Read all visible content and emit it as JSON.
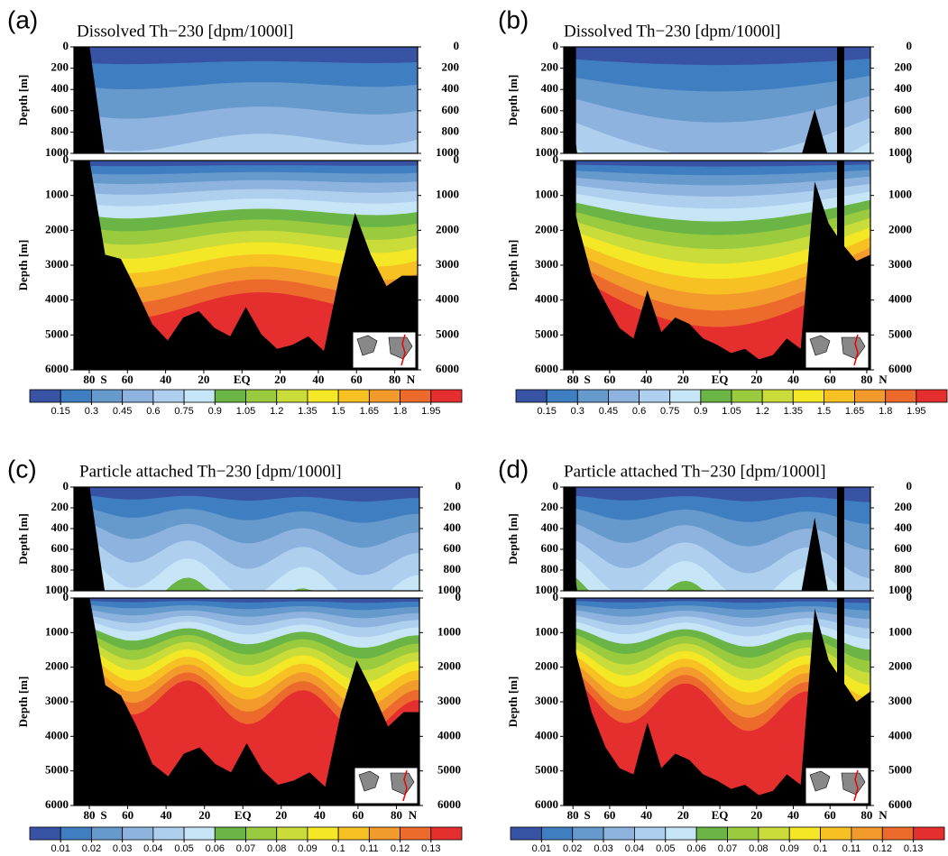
{
  "chart_data": [
    {
      "type": "contour",
      "panel_label": "(a)",
      "title": "Dissolved Th−230 [dpm/1000l]",
      "ylabel": "Depth [m]",
      "xlim": [
        -88,
        92
      ],
      "xticks": [
        {
          "value": -80,
          "label": "80"
        },
        {
          "value": -60,
          "label": "60"
        },
        {
          "value": -40,
          "label": "40"
        },
        {
          "value": -20,
          "label": "20"
        },
        {
          "value": 0,
          "label": "EQ"
        },
        {
          "value": 20,
          "label": "20"
        },
        {
          "value": 40,
          "label": "40"
        },
        {
          "value": 60,
          "label": "60"
        },
        {
          "value": 80,
          "label": "80"
        }
      ],
      "hemisphere_labels": [
        "S",
        "N"
      ],
      "upper": {
        "ylim": [
          1000,
          0
        ],
        "yticks": [
          0,
          200,
          400,
          600,
          800,
          1000
        ]
      },
      "lower": {
        "ylim": [
          6000,
          0
        ],
        "yticks": [
          0,
          1000,
          2000,
          3000,
          4000,
          5000,
          6000
        ]
      },
      "colorbar": {
        "levels": [
          0.15,
          0.3,
          0.45,
          0.6,
          0.75,
          0.9,
          1.05,
          1.2,
          1.35,
          1.5,
          1.65,
          1.8,
          1.95
        ],
        "colors": [
          "#3953a4",
          "#3f7fc1",
          "#6699cc",
          "#8db3de",
          "#aed0ee",
          "#c6e6f7",
          "#6ab545",
          "#9acb3f",
          "#cadc3a",
          "#f4e726",
          "#f7c123",
          "#f39a2c",
          "#ed6a2d",
          "#e52f2f"
        ]
      }
    },
    {
      "type": "contour",
      "panel_label": "(b)",
      "title": "Dissolved Th−230 [dpm/1000l]",
      "ylabel": "Depth [m]",
      "xlim": [
        -85,
        82
      ],
      "xticks": [
        {
          "value": -80,
          "label": "80"
        },
        {
          "value": -60,
          "label": "60"
        },
        {
          "value": -40,
          "label": "40"
        },
        {
          "value": -20,
          "label": "20"
        },
        {
          "value": 0,
          "label": "EQ"
        },
        {
          "value": 20,
          "label": "20"
        },
        {
          "value": 40,
          "label": "40"
        },
        {
          "value": 60,
          "label": "60"
        },
        {
          "value": 80,
          "label": "80"
        }
      ],
      "hemisphere_labels": [
        "S",
        "N"
      ],
      "upper": {
        "ylim": [
          1000,
          0
        ],
        "yticks": [
          0,
          200,
          400,
          600,
          800,
          1000
        ]
      },
      "lower": {
        "ylim": [
          6000,
          0
        ],
        "yticks": [
          0,
          1000,
          2000,
          3000,
          4000,
          5000,
          6000
        ]
      },
      "colorbar": {
        "levels": [
          0.15,
          0.3,
          0.45,
          0.6,
          0.75,
          0.9,
          1.05,
          1.2,
          1.35,
          1.5,
          1.65,
          1.8,
          1.95
        ],
        "colors": [
          "#3953a4",
          "#3f7fc1",
          "#6699cc",
          "#8db3de",
          "#aed0ee",
          "#c6e6f7",
          "#6ab545",
          "#9acb3f",
          "#cadc3a",
          "#f4e726",
          "#f7c123",
          "#f39a2c",
          "#ed6a2d",
          "#e52f2f"
        ]
      }
    },
    {
      "type": "contour",
      "panel_label": "(c)",
      "title": "Particle attached Th−230 [dpm/1000l]",
      "ylabel": "Depth [m]",
      "xlim": [
        -88,
        92
      ],
      "xticks": [
        {
          "value": -80,
          "label": "80"
        },
        {
          "value": -60,
          "label": "60"
        },
        {
          "value": -40,
          "label": "40"
        },
        {
          "value": -20,
          "label": "20"
        },
        {
          "value": 0,
          "label": "EQ"
        },
        {
          "value": 20,
          "label": "20"
        },
        {
          "value": 40,
          "label": "40"
        },
        {
          "value": 60,
          "label": "60"
        },
        {
          "value": 80,
          "label": "80"
        }
      ],
      "hemisphere_labels": [
        "S",
        "N"
      ],
      "upper": {
        "ylim": [
          1000,
          0
        ],
        "yticks": [
          0,
          200,
          400,
          600,
          800,
          1000
        ]
      },
      "lower": {
        "ylim": [
          6000,
          0
        ],
        "yticks": [
          0,
          1000,
          2000,
          3000,
          4000,
          5000,
          6000
        ]
      },
      "colorbar": {
        "levels": [
          0.01,
          0.02,
          0.03,
          0.04,
          0.05,
          0.06,
          0.07,
          0.08,
          0.09,
          0.1,
          0.11,
          0.12,
          0.13
        ],
        "colors": [
          "#3953a4",
          "#3f7fc1",
          "#6699cc",
          "#8db3de",
          "#aed0ee",
          "#c6e6f7",
          "#6ab545",
          "#9acb3f",
          "#cadc3a",
          "#f4e726",
          "#f7c123",
          "#f39a2c",
          "#ed6a2d",
          "#e52f2f"
        ]
      }
    },
    {
      "type": "contour",
      "panel_label": "(d)",
      "title": "Particle attached Th−230 [dpm/1000l]",
      "ylabel": "Depth [m]",
      "xlim": [
        -85,
        82
      ],
      "xticks": [
        {
          "value": -80,
          "label": "80"
        },
        {
          "value": -60,
          "label": "60"
        },
        {
          "value": -40,
          "label": "40"
        },
        {
          "value": -20,
          "label": "20"
        },
        {
          "value": 0,
          "label": "EQ"
        },
        {
          "value": 20,
          "label": "20"
        },
        {
          "value": 40,
          "label": "40"
        },
        {
          "value": 60,
          "label": "60"
        },
        {
          "value": 80,
          "label": "80"
        }
      ],
      "hemisphere_labels": [
        "S",
        "N"
      ],
      "upper": {
        "ylim": [
          1000,
          0
        ],
        "yticks": [
          0,
          200,
          400,
          600,
          800,
          1000
        ]
      },
      "lower": {
        "ylim": [
          6000,
          0
        ],
        "yticks": [
          0,
          1000,
          2000,
          3000,
          4000,
          5000,
          6000
        ]
      },
      "colorbar": {
        "levels": [
          0.01,
          0.02,
          0.03,
          0.04,
          0.05,
          0.06,
          0.07,
          0.08,
          0.09,
          0.1,
          0.11,
          0.12,
          0.13
        ],
        "colors": [
          "#3953a4",
          "#3f7fc1",
          "#6699cc",
          "#8db3de",
          "#aed0ee",
          "#c6e6f7",
          "#6ab545",
          "#9acb3f",
          "#cadc3a",
          "#f4e726",
          "#f7c123",
          "#f39a2c",
          "#ed6a2d",
          "#e52f2f"
        ]
      }
    }
  ]
}
